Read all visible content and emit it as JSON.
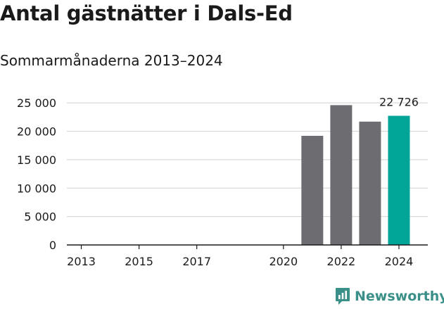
{
  "title": "Antal gästnätter i Dals-Ed",
  "subtitle": "Sommarmånaderna 2013–2024",
  "brand": {
    "name": "Newsworthy",
    "icon": "newsworthy-logo-icon",
    "color": "#3a8f89"
  },
  "colors": {
    "bar": "#6d6c71",
    "highlight": "#00a598",
    "grid": "#d9d9d9",
    "axis": "#1a1a1a",
    "text": "#1a1a1a"
  },
  "chart_data": {
    "type": "bar",
    "x": [
      2021,
      2022,
      2023,
      2024
    ],
    "values": [
      19200,
      24600,
      21700,
      22726
    ],
    "highlight_x": 2024,
    "xlim": [
      2012.5,
      2025
    ],
    "ylim": [
      0,
      27000
    ],
    "xticks": [
      2013,
      2015,
      2017,
      2020,
      2022,
      2024
    ],
    "xtick_labels": [
      "2013",
      "2015",
      "2017",
      "2020",
      "2022",
      "2024"
    ],
    "yticks": [
      0,
      5000,
      10000,
      15000,
      20000,
      25000
    ],
    "ytick_labels": [
      "0",
      "5 000",
      "10 000",
      "15 000",
      "20 000",
      "25 000"
    ],
    "data_labels": [
      {
        "x": 2024,
        "text": "22 726"
      }
    ],
    "grid": true
  }
}
